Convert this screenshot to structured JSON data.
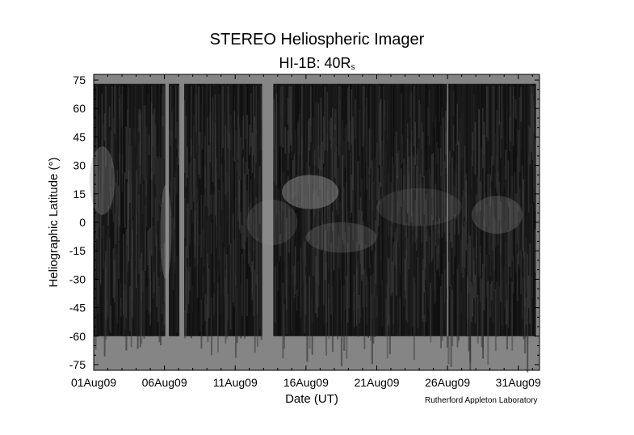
{
  "chart_data": {
    "type": "heatmap",
    "title": "STEREO Heliospheric Imager",
    "subtitle_main": "HI-1B: 40R",
    "subtitle_sub": "s",
    "xlabel": "Date (UT)",
    "ylabel": "Heliographic Latitude (°)",
    "credit": "Rutherford Appleton Laboratory",
    "x_ticks": [
      "01Aug09",
      "06Aug09",
      "11Aug09",
      "16Aug09",
      "21Aug09",
      "26Aug09",
      "31Aug09"
    ],
    "x_tick_days": [
      1,
      6,
      11,
      16,
      21,
      26,
      31
    ],
    "xlim": [
      1,
      32.5
    ],
    "y_ticks": [
      75,
      60,
      45,
      30,
      15,
      0,
      -15,
      -30,
      -45,
      -60,
      -75
    ],
    "ylim": [
      -78,
      78
    ],
    "data_lat_range": [
      -60,
      73
    ],
    "data_gaps_days": [
      [
        6.0,
        6.3
      ],
      [
        7.0,
        7.4
      ],
      [
        12.9,
        13.7
      ]
    ],
    "colors": {
      "gap": "#858585",
      "background_dark": "#0e0e0e",
      "bright_feature": "#9a9a9a"
    }
  }
}
